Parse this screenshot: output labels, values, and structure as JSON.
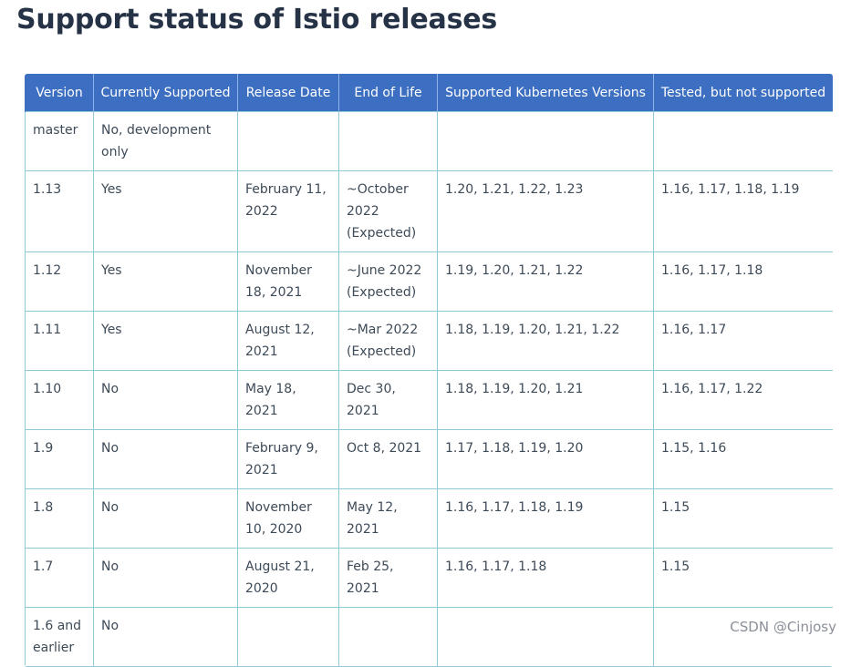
{
  "page": {
    "title": "Support status of Istio releases"
  },
  "table": {
    "headers": [
      "Version",
      "Currently Supported",
      "Release Date",
      "End of Life",
      "Supported Kubernetes Versions",
      "Tested, but not supported"
    ],
    "rows": [
      [
        "master",
        "No, development only",
        "",
        "",
        "",
        ""
      ],
      [
        "1.13",
        "Yes",
        "February 11, 2022",
        "~October 2022 (Expected)",
        "1.20, 1.21, 1.22, 1.23",
        "1.16, 1.17, 1.18, 1.19"
      ],
      [
        "1.12",
        "Yes",
        "November 18, 2021",
        "~June 2022 (Expected)",
        "1.19, 1.20, 1.21, 1.22",
        "1.16, 1.17, 1.18"
      ],
      [
        "1.11",
        "Yes",
        "August 12, 2021",
        "~Mar 2022 (Expected)",
        "1.18, 1.19, 1.20, 1.21, 1.22",
        "1.16, 1.17"
      ],
      [
        "1.10",
        "No",
        "May 18, 2021",
        "Dec 30, 2021",
        "1.18, 1.19, 1.20, 1.21",
        "1.16, 1.17, 1.22"
      ],
      [
        "1.9",
        "No",
        "February 9, 2021",
        "Oct 8, 2021",
        "1.17, 1.18, 1.19, 1.20",
        "1.15, 1.16"
      ],
      [
        "1.8",
        "No",
        "November 10, 2020",
        "May 12, 2021",
        "1.16, 1.17, 1.18, 1.19",
        "1.15"
      ],
      [
        "1.7",
        "No",
        "August 21, 2020",
        "Feb 25, 2021",
        "1.16, 1.17, 1.18",
        "1.15"
      ],
      [
        "1.6 and earlier",
        "No",
        "",
        "",
        "",
        ""
      ]
    ]
  },
  "watermark": "CSDN @Cinjosy",
  "colors": {
    "header_bg": "#3c6fc1",
    "header_text": "#ffffff",
    "cell_border": "#8ecbd6",
    "title_text": "#263246"
  }
}
